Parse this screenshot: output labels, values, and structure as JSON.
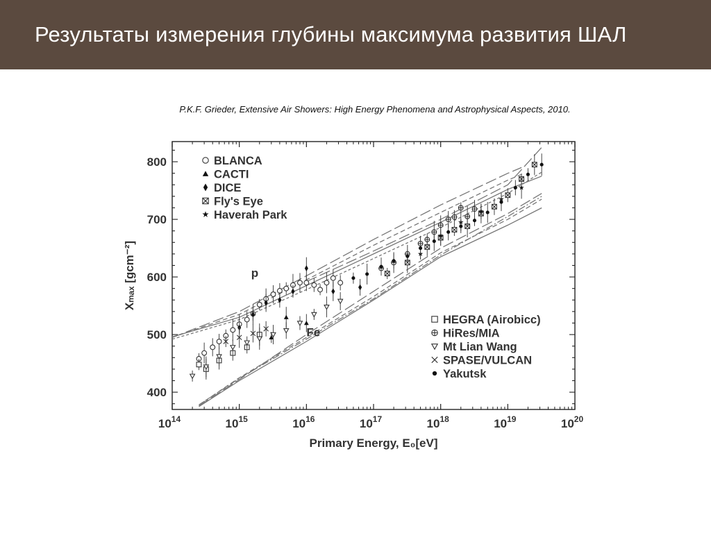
{
  "slide": {
    "title": "Результаты измерения глубины максимума развития ШАЛ",
    "citation": "P.K.F. Grieder, Extensive Air Showers: High Energy Phenomena and Astrophysical Aspects, 2010."
  },
  "chart_data": {
    "type": "scatter",
    "title": "",
    "xlabel": "Primary Energy, E₀[eV]",
    "ylabel": "Xₘₐₓ [gcm⁻²]",
    "x_scale": "log",
    "xlim": [
      100000000000000.0,
      1e+20
    ],
    "ylim": [
      370,
      835
    ],
    "x_tick_exponents": [
      14,
      15,
      16,
      17,
      18,
      19,
      20
    ],
    "y_ticks": [
      400,
      500,
      600,
      700,
      800
    ],
    "grid": false,
    "legend_top_left": [
      {
        "name": "BLANCA",
        "marker": "circle-open"
      },
      {
        "name": "CACTI",
        "marker": "triangle-filled"
      },
      {
        "name": "DICE",
        "marker": "diamond-filled"
      },
      {
        "name": "Fly's Eye",
        "marker": "square-cross"
      },
      {
        "name": "Haverah Park",
        "marker": "star"
      }
    ],
    "legend_bottom_right": [
      {
        "name": "HEGRA (Airobicc)",
        "marker": "square-open"
      },
      {
        "name": "HiRes/MIA",
        "marker": "circle-plus"
      },
      {
        "name": "Mt Lian Wang",
        "marker": "triangle-down-open"
      },
      {
        "name": "SPASE/VULCAN",
        "marker": "x-cross"
      },
      {
        "name": "Yakutsk",
        "marker": "dot"
      }
    ],
    "annotations": [
      {
        "text": "p",
        "x": 1500000000000000.0,
        "y": 600
      },
      {
        "text": "Fe",
        "x": 1e+16,
        "y": 497
      }
    ],
    "series": [
      {
        "name": "BLANCA",
        "points": [
          [
            250000000000000.0,
            458
          ],
          [
            300000000000000.0,
            468
          ],
          [
            400000000000000.0,
            478
          ],
          [
            500000000000000.0,
            488
          ],
          [
            630000000000000.0,
            498
          ],
          [
            800000000000000.0,
            508
          ],
          [
            1000000000000000.0,
            518
          ],
          [
            1300000000000000.0,
            526
          ],
          [
            1600000000000000.0,
            536
          ],
          [
            2000000000000000.0,
            552
          ],
          [
            2500000000000000.0,
            562
          ],
          [
            3200000000000000.0,
            570
          ],
          [
            4000000000000000.0,
            576
          ],
          [
            5000000000000000.0,
            580
          ],
          [
            6300000000000000.0,
            586
          ],
          [
            8000000000000000.0,
            590
          ],
          [
            1e+16,
            590
          ],
          [
            1.3e+16,
            586
          ],
          [
            1.6e+16,
            578
          ],
          [
            2e+16,
            590
          ],
          [
            2.5e+16,
            598
          ],
          [
            3.2e+16,
            590
          ]
        ]
      },
      {
        "name": "CACTI",
        "points": [
          [
            3000000000000000.0,
            495
          ],
          [
            5000000000000000.0,
            530
          ],
          [
            1e+16,
            520
          ]
        ]
      },
      {
        "name": "DICE",
        "points": [
          [
            1000000000000000.0,
            512
          ],
          [
            1600000000000000.0,
            535
          ],
          [
            2500000000000000.0,
            555
          ],
          [
            4000000000000000.0,
            560
          ],
          [
            6300000000000000.0,
            575
          ],
          [
            1e+16,
            615
          ],
          [
            2.5e+16,
            575
          ],
          [
            6.3e+16,
            582
          ]
        ]
      },
      {
        "name": "Fly's Eye",
        "points": [
          [
            1.6e+17,
            606
          ],
          [
            3.2e+17,
            625
          ],
          [
            6.3e+17,
            652
          ],
          [
            1e+18,
            668
          ],
          [
            1.6e+18,
            682
          ],
          [
            2.5e+18,
            688
          ],
          [
            4e+18,
            710
          ],
          [
            6.3e+18,
            722
          ],
          [
            1e+19,
            742
          ],
          [
            1.6e+19,
            770
          ],
          [
            2.5e+19,
            795
          ]
        ]
      },
      {
        "name": "Haverah Park",
        "points": [
          [
            5e+17,
            640
          ],
          [
            1e+18,
            672
          ],
          [
            2e+18,
            695
          ],
          [
            4e+18,
            714
          ],
          [
            8e+18,
            735
          ],
          [
            1.6e+19,
            755
          ]
        ]
      },
      {
        "name": "HEGRA (Airobicc)",
        "points": [
          [
            250000000000000.0,
            448
          ],
          [
            320000000000000.0,
            440
          ],
          [
            500000000000000.0,
            455
          ],
          [
            800000000000000.0,
            468
          ],
          [
            1300000000000000.0,
            478
          ],
          [
            2000000000000000.0,
            500
          ]
        ]
      },
      {
        "name": "HiRes/MIA",
        "points": [
          [
            1.3e+17,
            615
          ],
          [
            2e+17,
            625
          ],
          [
            3.2e+17,
            640
          ],
          [
            5e+17,
            658
          ],
          [
            6.3e+17,
            665
          ],
          [
            8e+17,
            678
          ],
          [
            1e+18,
            690
          ],
          [
            1.3e+18,
            700
          ],
          [
            1.6e+18,
            704
          ],
          [
            2e+18,
            720
          ],
          [
            2.5e+18,
            705
          ],
          [
            3.2e+18,
            718
          ]
        ]
      },
      {
        "name": "Mt Lian Wang",
        "points": [
          [
            200000000000000.0,
            428
          ],
          [
            320000000000000.0,
            444
          ],
          [
            500000000000000.0,
            462
          ],
          [
            800000000000000.0,
            478
          ],
          [
            1300000000000000.0,
            486
          ],
          [
            2000000000000000.0,
            493
          ],
          [
            3200000000000000.0,
            500
          ],
          [
            5000000000000000.0,
            507
          ],
          [
            8000000000000000.0,
            520
          ],
          [
            1.3e+16,
            535
          ],
          [
            2e+16,
            548
          ],
          [
            3.2e+16,
            558
          ]
        ]
      },
      {
        "name": "SPASE/VULCAN",
        "points": [
          [
            630000000000000.0,
            488
          ],
          [
            1000000000000000.0,
            495
          ],
          [
            1600000000000000.0,
            502
          ],
          [
            2500000000000000.0,
            510
          ]
        ]
      },
      {
        "name": "Yakutsk",
        "points": [
          [
            5e+16,
            598
          ],
          [
            8e+16,
            605
          ],
          [
            1.3e+17,
            618
          ],
          [
            2e+17,
            628
          ],
          [
            3.2e+17,
            636
          ],
          [
            5e+17,
            650
          ],
          [
            8e+17,
            662
          ],
          [
            1.3e+18,
            678
          ],
          [
            2e+18,
            688
          ],
          [
            3.2e+18,
            698
          ],
          [
            5e+18,
            712
          ],
          [
            8e+18,
            730
          ],
          [
            1.3e+19,
            755
          ],
          [
            2e+19,
            778
          ],
          [
            3.2e+19,
            795
          ]
        ]
      }
    ],
    "model_curves": [
      {
        "group": "p",
        "style": "long-dash",
        "points": [
          [
            100000000000000.0,
            495
          ],
          [
            1000000000000000.0,
            540
          ],
          [
            1e+16,
            602
          ],
          [
            1e+17,
            665
          ],
          [
            1e+18,
            725
          ],
          [
            1e+19,
            780
          ],
          [
            1.6e+19,
            790
          ]
        ]
      },
      {
        "group": "p",
        "style": "dash",
        "points": [
          [
            100000000000000.0,
            495
          ],
          [
            1000000000000000.0,
            535
          ],
          [
            1e+16,
            595
          ],
          [
            1e+17,
            655
          ],
          [
            1e+18,
            712
          ],
          [
            1e+19,
            768
          ],
          [
            1.6e+19,
            778
          ]
        ]
      },
      {
        "group": "p",
        "style": "solid",
        "points": [
          [
            100000000000000.0,
            496
          ],
          [
            1000000000000000.0,
            530
          ],
          [
            1e+16,
            585
          ],
          [
            1e+17,
            640
          ],
          [
            1e+18,
            695
          ],
          [
            1e+19,
            752
          ],
          [
            3.2e+19,
            775
          ]
        ]
      },
      {
        "group": "p",
        "style": "short-dash",
        "points": [
          [
            100000000000000.0,
            492
          ],
          [
            1000000000000000.0,
            526
          ],
          [
            1e+16,
            578
          ],
          [
            1e+17,
            632
          ],
          [
            1e+18,
            686
          ],
          [
            1e+19,
            745
          ],
          [
            3.2e+19,
            782
          ]
        ]
      },
      {
        "group": "p",
        "style": "long-dash",
        "points": [
          [
            1e+16,
            592
          ],
          [
            1e+17,
            645
          ],
          [
            1e+18,
            700
          ],
          [
            1e+19,
            760
          ],
          [
            3.2e+19,
            825
          ]
        ]
      },
      {
        "group": "Fe",
        "style": "solid",
        "points": [
          [
            250000000000000.0,
            375
          ],
          [
            1000000000000000.0,
            420
          ],
          [
            1e+16,
            488
          ],
          [
            1e+17,
            560
          ],
          [
            1e+18,
            635
          ],
          [
            1e+19,
            690
          ],
          [
            3.2e+19,
            720
          ]
        ]
      },
      {
        "group": "Fe",
        "style": "dash",
        "points": [
          [
            250000000000000.0,
            378
          ],
          [
            1000000000000000.0,
            425
          ],
          [
            1e+16,
            495
          ],
          [
            1e+17,
            566
          ],
          [
            1e+18,
            642
          ],
          [
            1e+19,
            700
          ],
          [
            3.2e+19,
            735
          ]
        ]
      },
      {
        "group": "Fe",
        "style": "long-dash",
        "points": [
          [
            250000000000000.0,
            376
          ],
          [
            1000000000000000.0,
            422
          ],
          [
            1e+16,
            500
          ],
          [
            1e+17,
            575
          ],
          [
            1e+18,
            650
          ],
          [
            1e+19,
            710
          ],
          [
            3.2e+19,
            745
          ]
        ]
      },
      {
        "group": "Fe",
        "style": "dash-dot",
        "points": [
          [
            250000000000000.0,
            378
          ],
          [
            1000000000000000.0,
            424
          ],
          [
            1e+16,
            492
          ],
          [
            1e+17,
            562
          ],
          [
            1e+18,
            638
          ],
          [
            1e+19,
            705
          ],
          [
            3.2e+19,
            740
          ]
        ]
      }
    ]
  }
}
